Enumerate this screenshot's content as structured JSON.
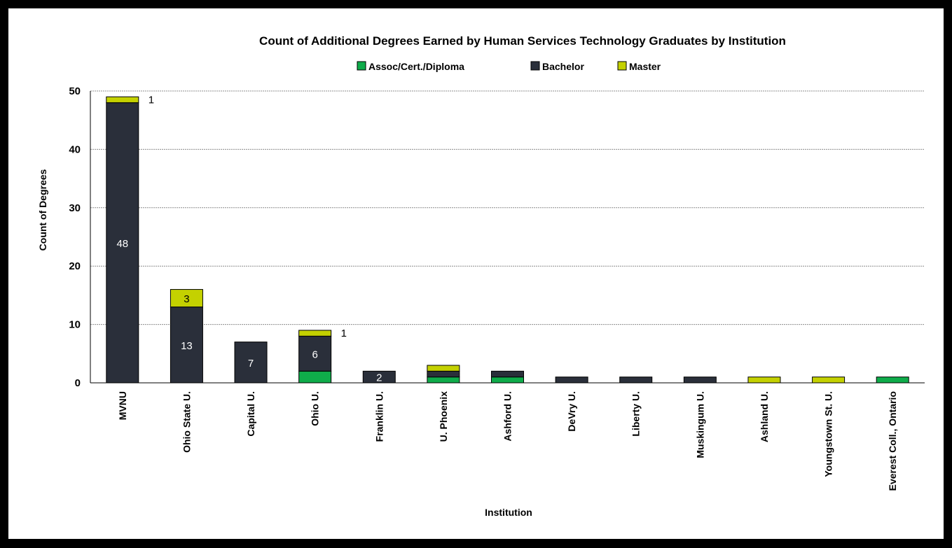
{
  "chart_data": {
    "type": "bar",
    "stacked": true,
    "title": "Count of Additional Degrees Earned by Human Services Technology Graduates by Institution",
    "xlabel": "Institution",
    "ylabel": "Count of Degrees",
    "ylim": [
      0,
      50
    ],
    "yticks": [
      0,
      10,
      20,
      30,
      40,
      50
    ],
    "grid": true,
    "legend_position": "top",
    "categories": [
      "MVNU",
      "Ohio State U.",
      "Capital U.",
      "Ohio U.",
      "Franklin U.",
      "U. Phoenix",
      "Ashford U.",
      "DeVry U.",
      "Liberty U.",
      "Muskingum U.",
      "Ashland U.",
      "Youngstown St. U.",
      "Everest Coll., Ontario"
    ],
    "series": [
      {
        "name": "Assoc/Cert./Diploma",
        "color": "#0fac4a",
        "values": [
          0,
          0,
          0,
          2,
          0,
          1,
          1,
          0,
          0,
          0,
          0,
          0,
          1
        ]
      },
      {
        "name": "Bachelor",
        "color": "#2a2f3a",
        "values": [
          48,
          13,
          7,
          6,
          2,
          1,
          1,
          1,
          1,
          1,
          0,
          0,
          0
        ]
      },
      {
        "name": "Master",
        "color": "#c4d100",
        "values": [
          1,
          3,
          0,
          1,
          0,
          1,
          0,
          0,
          0,
          0,
          1,
          1,
          0
        ]
      }
    ],
    "data_labels": [
      {
        "category": "MVNU",
        "series": "Bachelor",
        "text": "48",
        "position": "inside"
      },
      {
        "category": "MVNU",
        "series": "Master",
        "text": "1",
        "position": "right"
      },
      {
        "category": "Ohio State U.",
        "series": "Bachelor",
        "text": "13",
        "position": "inside"
      },
      {
        "category": "Ohio State U.",
        "series": "Master",
        "text": "3",
        "position": "inside"
      },
      {
        "category": "Capital U.",
        "series": "Bachelor",
        "text": "7",
        "position": "inside"
      },
      {
        "category": "Ohio U.",
        "series": "Bachelor",
        "text": "6",
        "position": "inside"
      },
      {
        "category": "Ohio U.",
        "series": "Master",
        "text": "1",
        "position": "right"
      },
      {
        "category": "Franklin U.",
        "series": "Bachelor",
        "text": "2",
        "position": "inside"
      }
    ]
  }
}
